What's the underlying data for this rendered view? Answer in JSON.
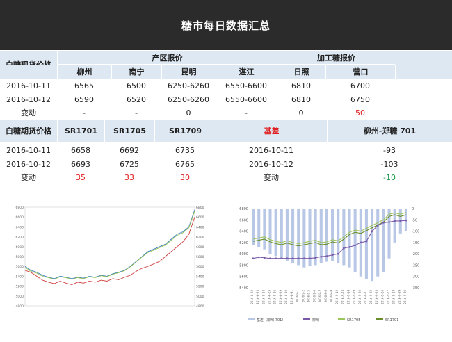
{
  "page_title": "糖市每日数据汇总",
  "spot": {
    "row_label": "白糖现货价格",
    "group_origin": "产区报价",
    "group_processed": "加工糖报价",
    "columns": [
      "柳州",
      "南宁",
      "昆明",
      "湛江",
      "日照",
      "营口"
    ],
    "rows": [
      {
        "date": "2016-10-11",
        "values": [
          "6565",
          "6500",
          "6250-6260",
          "6550-6600",
          "6810",
          "6700"
        ]
      },
      {
        "date": "2016-10-12",
        "values": [
          "6590",
          "6520",
          "6250-6260",
          "6550-6600",
          "6810",
          "6750"
        ]
      }
    ],
    "change_label": "变动",
    "change": [
      "-",
      "-",
      "0",
      "-",
      "0",
      "50"
    ]
  },
  "futures": {
    "row_label": "白糖期货价格",
    "columns": [
      "SR1701",
      "SR1705",
      "SR1709"
    ],
    "basis_label": "基差",
    "spread_label": "柳州-郑糖 701",
    "rows": [
      {
        "date": "2016-10-11",
        "values": [
          "6658",
          "6692",
          "6735"
        ],
        "basis_date": "2016-10-11",
        "spread": "-93"
      },
      {
        "date": "2016-10-12",
        "values": [
          "6693",
          "6725",
          "6765"
        ],
        "basis_date": "2016-10-12",
        "spread": "-103"
      }
    ],
    "change_label": "变动",
    "change": [
      "35",
      "33",
      "30"
    ],
    "basis_change": "变动",
    "spread_change": "-10"
  },
  "chart_data": [
    {
      "type": "line",
      "y_ticks": [
        "6800",
        "6600",
        "6400",
        "6200",
        "6000",
        "5800",
        "5600",
        "5400",
        "5200",
        "5000",
        "4800"
      ],
      "ylim": [
        4800,
        6800
      ],
      "series": [
        {
          "color": "#d04040",
          "values": [
            5520,
            5480,
            5400,
            5320,
            5280,
            5250,
            5300,
            5260,
            5230,
            5280,
            5260,
            5300,
            5280,
            5320,
            5300,
            5350,
            5330,
            5380,
            5420,
            5500,
            5560,
            5600,
            5650,
            5700,
            5800,
            5900,
            6000,
            6100,
            6250,
            6600
          ]
        },
        {
          "color": "#3a7fbf",
          "values": [
            5600,
            5520,
            5480,
            5420,
            5380,
            5350,
            5400,
            5380,
            5350,
            5380,
            5360,
            5400,
            5380,
            5420,
            5400,
            5450,
            5480,
            5520,
            5600,
            5700,
            5800,
            5900,
            5950,
            6000,
            6050,
            6150,
            6250,
            6300,
            6400,
            6750
          ]
        },
        {
          "color": "#9bc45a",
          "values": [
            5580,
            5500,
            5460,
            5400,
            5370,
            5340,
            5390,
            5370,
            5340,
            5370,
            5350,
            5390,
            5370,
            5410,
            5390,
            5440,
            5470,
            5510,
            5590,
            5690,
            5790,
            5880,
            5930,
            5980,
            6030,
            6130,
            6230,
            6280,
            6380,
            6720
          ]
        }
      ]
    },
    {
      "type": "bar",
      "y_left": [
        "6800",
        "6600",
        "6400",
        "6200",
        "6000",
        "5800",
        "5600",
        "5400"
      ],
      "y_right": [
        "0",
        "-50",
        "-100",
        "-150",
        "-200",
        "-250",
        "-300",
        "-350"
      ],
      "categories": [
        "2016-8-22",
        "2016-8-23",
        "2016-8-24",
        "2016-8-25",
        "2016-8-26",
        "2016-8-29",
        "2016-8-30",
        "2016-8-31",
        "2016-9-1",
        "2016-9-2",
        "2016-9-5",
        "2016-9-6",
        "2016-9-7",
        "2016-9-8",
        "2016-9-9",
        "2016-9-12",
        "2016-9-13",
        "2016-9-14",
        "2016-9-19",
        "2016-9-20",
        "2016-9-21",
        "2016-9-22",
        "2016-9-23",
        "2016-9-26",
        "2016-9-27",
        "2016-9-28",
        "2016-9-29",
        "2016-9-30"
      ],
      "legend": [
        "基差（柳州-701）",
        "柳州",
        "SR1705",
        "SR1701"
      ],
      "basis": [
        -160,
        -170,
        -180,
        -200,
        -210,
        -220,
        -230,
        -240,
        -250,
        -260,
        -255,
        -250,
        -240,
        -235,
        -230,
        -240,
        -250,
        -260,
        -280,
        -300,
        -310,
        -320,
        -300,
        -280,
        -220,
        -150,
        -110,
        -100
      ],
      "liuzhou": [
        5920,
        5940,
        5930,
        5920,
        5920,
        5920,
        5920,
        5920,
        5920,
        5920,
        5920,
        5930,
        5950,
        5960,
        5980,
        6000,
        6100,
        6120,
        6150,
        6200,
        6220,
        6400,
        6500,
        6550,
        6560,
        6580,
        6580,
        6590
      ],
      "sr1705": [
        6260,
        6280,
        6300,
        6250,
        6220,
        6200,
        6230,
        6200,
        6180,
        6200,
        6220,
        6240,
        6200,
        6210,
        6250,
        6230,
        6300,
        6380,
        6420,
        6400,
        6450,
        6500,
        6550,
        6600,
        6700,
        6720,
        6700,
        6730
      ],
      "sr1701": [
        6220,
        6240,
        6260,
        6210,
        6180,
        6160,
        6190,
        6160,
        6140,
        6160,
        6180,
        6200,
        6160,
        6170,
        6210,
        6190,
        6260,
        6340,
        6380,
        6360,
        6410,
        6460,
        6510,
        6560,
        6660,
        6690,
        6660,
        6690
      ]
    }
  ]
}
